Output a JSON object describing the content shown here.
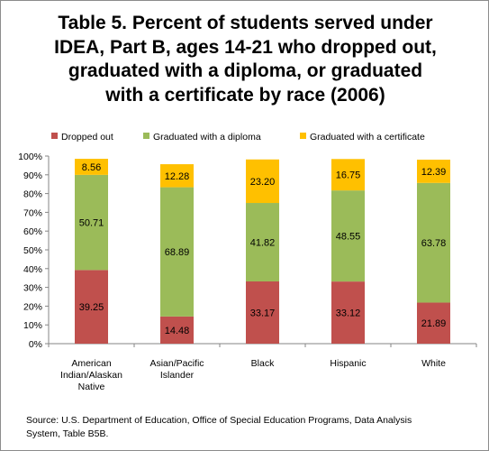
{
  "chart_data": {
    "type": "bar",
    "stacked": true,
    "title_lines": [
      "Table 5. Percent of students served under",
      "IDEA, Part B, ages 14-21 who dropped out,",
      "graduated with a diploma, or graduated",
      "with a certificate by race (2006)"
    ],
    "categories": [
      [
        "American",
        "Indian/Alaskan",
        "Native"
      ],
      [
        "Asian/Pacific",
        "Islander"
      ],
      [
        "Black"
      ],
      [
        "Hispanic"
      ],
      [
        "White"
      ]
    ],
    "series": [
      {
        "name": "Dropped out",
        "color": "#c0504d",
        "values": [
          39.25,
          14.48,
          33.17,
          33.12,
          21.89
        ]
      },
      {
        "name": "Graduated with a diploma",
        "color": "#9bbb59",
        "values": [
          50.71,
          68.89,
          41.82,
          48.55,
          63.78
        ]
      },
      {
        "name": "Graduated with a certificate",
        "color": "#ffc000",
        "values": [
          8.56,
          12.28,
          23.2,
          16.75,
          12.39
        ]
      }
    ],
    "value_labels": [
      [
        "39.25",
        "14.48",
        "33.17",
        "33.12",
        "21.89"
      ],
      [
        "50.71",
        "68.89",
        "41.82",
        "48.55",
        "63.78"
      ],
      [
        "8.56",
        "12.28",
        "23.20",
        "16.75",
        "12.39"
      ]
    ],
    "y_ticks": [
      "0%",
      "10%",
      "20%",
      "30%",
      "40%",
      "50%",
      "60%",
      "70%",
      "80%",
      "90%",
      "100%"
    ],
    "ylim": [
      0,
      100
    ],
    "legend_position": "top",
    "grid": false,
    "source_lines": [
      "Source: U.S. Department of Education,  Office of Special Education Programs,  Data Analysis",
      "System,  Table B5B."
    ]
  }
}
